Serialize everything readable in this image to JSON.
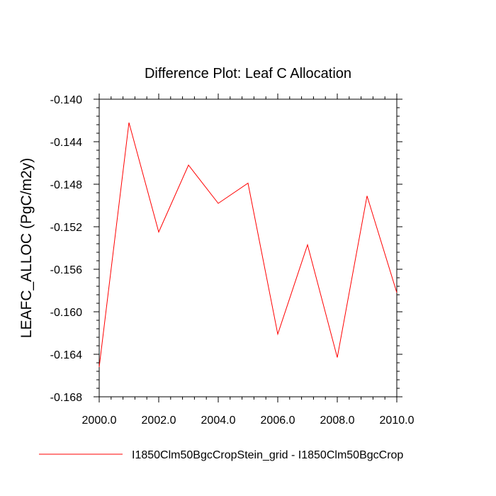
{
  "chart_data": {
    "type": "line",
    "title": "Difference Plot: Leaf C Allocation",
    "xlabel": "",
    "ylabel": "LEAFC_ALLOC  (PgC/m2y)",
    "xlim": [
      2000.0,
      2010.0
    ],
    "ylim": [
      -0.168,
      -0.14
    ],
    "x_ticks": [
      "2000.0",
      "2002.0",
      "2004.0",
      "2006.0",
      "2008.0",
      "2010.0"
    ],
    "x_tick_values": [
      2000,
      2002,
      2004,
      2006,
      2008,
      2010
    ],
    "y_ticks": [
      "-0.140",
      "-0.144",
      "-0.148",
      "-0.152",
      "-0.156",
      "-0.160",
      "-0.164",
      "-0.168"
    ],
    "y_tick_values": [
      -0.14,
      -0.144,
      -0.148,
      -0.152,
      -0.156,
      -0.16,
      -0.164,
      -0.168
    ],
    "grid": false,
    "legend_position": "bottom",
    "series": [
      {
        "name": "I1850Clm50BgcCropStein_grid - I1850Clm50BgcCrop",
        "color": "#ff0000",
        "x": [
          2000,
          2001,
          2002,
          2003,
          2004,
          2005,
          2006,
          2007,
          2008,
          2009,
          2010
        ],
        "y": [
          -0.1652,
          -0.1422,
          -0.1525,
          -0.1462,
          -0.1498,
          -0.1479,
          -0.1621,
          -0.1537,
          -0.1643,
          -0.1491,
          -0.1582
        ]
      }
    ]
  }
}
